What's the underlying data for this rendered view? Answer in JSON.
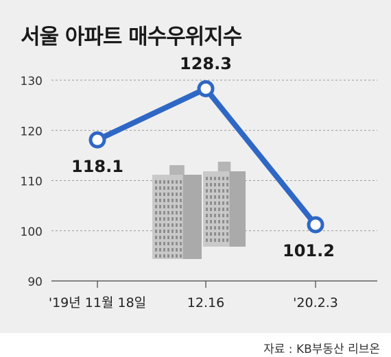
{
  "title": "서울 아파트 매수우위지수",
  "source": "자료 : KB부동산 리브온",
  "colors": {
    "line": "#2f67c5",
    "panel_bg": "#efefef",
    "marker_fill": "#ffffff",
    "grid": "#999999",
    "building": "#c9c9c9"
  },
  "decoration": {
    "icon": "apartment-buildings-illustration"
  },
  "chart_data": {
    "type": "line",
    "title": "서울 아파트 매수우위지수",
    "xlabel": "",
    "ylabel": "",
    "categories": [
      "'19년 11월 18일",
      "12.16",
      "'20.2.3"
    ],
    "series": [
      {
        "values": [
          118.1,
          128.3,
          101.2
        ]
      }
    ],
    "data_labels": [
      "118.1",
      "128.3",
      "101.2"
    ],
    "yticks": [
      90,
      100,
      110,
      120,
      130
    ],
    "ylim": [
      90,
      130
    ],
    "grid": "horizontal dashed",
    "legend": "none"
  }
}
